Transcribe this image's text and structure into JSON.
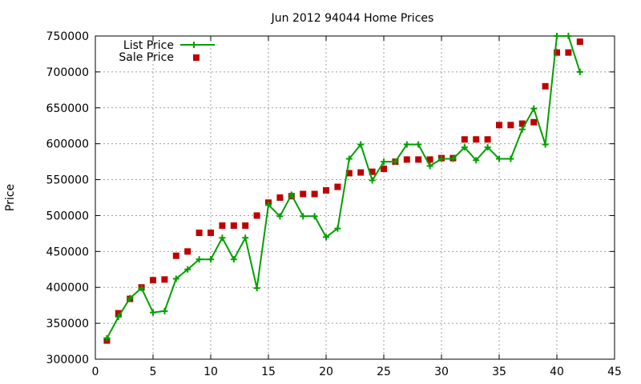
{
  "chart_data": {
    "type": "line",
    "title": "Jun 2012 94044 Home Prices",
    "xlabel": "",
    "ylabel": "Price",
    "xlim": [
      0,
      45
    ],
    "ylim": [
      300000,
      750000
    ],
    "x_ticks": [
      "0",
      "5",
      "10",
      "15",
      "20",
      "25",
      "30",
      "35",
      "40",
      "45"
    ],
    "y_ticks": [
      "300000",
      "350000",
      "400000",
      "450000",
      "500000",
      "550000",
      "600000",
      "650000",
      "700000",
      "750000"
    ],
    "grid": true,
    "legend_position": "top-left",
    "series": [
      {
        "name": "List Price",
        "style": "line-with-plus-markers",
        "color": "#00a000",
        "x": [
          1,
          2,
          3,
          4,
          5,
          6,
          7,
          8,
          9,
          10,
          11,
          12,
          13,
          14,
          15,
          16,
          17,
          18,
          19,
          20,
          21,
          22,
          23,
          24,
          25,
          26,
          27,
          28,
          29,
          30,
          31,
          32,
          33,
          34,
          35,
          36,
          37,
          38,
          39,
          40,
          41,
          42
        ],
        "values": [
          329000,
          359000,
          385000,
          399000,
          365000,
          367000,
          412000,
          425000,
          439000,
          439000,
          469000,
          439000,
          469000,
          399000,
          515000,
          499000,
          529000,
          499000,
          499000,
          470000,
          482000,
          579000,
          599000,
          549000,
          575000,
          575000,
          599000,
          599000,
          569000,
          579000,
          579000,
          595000,
          577000,
          595000,
          579000,
          579000,
          620000,
          649000,
          599000,
          750000,
          750000,
          700000
        ]
      },
      {
        "name": "Sale Price",
        "style": "square-markers",
        "color": "#c00000",
        "x": [
          1,
          2,
          3,
          4,
          5,
          6,
          7,
          8,
          9,
          10,
          11,
          12,
          13,
          14,
          15,
          16,
          17,
          18,
          19,
          20,
          21,
          22,
          23,
          24,
          25,
          26,
          27,
          28,
          29,
          30,
          31,
          32,
          33,
          34,
          35,
          36,
          37,
          38,
          39,
          40,
          41,
          42
        ],
        "values": [
          326000,
          364000,
          384000,
          400000,
          410000,
          411000,
          444000,
          450000,
          476000,
          476000,
          486000,
          486000,
          486000,
          500000,
          518000,
          525000,
          527000,
          530000,
          530000,
          535000,
          540000,
          559000,
          560000,
          561000,
          565000,
          575000,
          578000,
          578000,
          578000,
          580000,
          580000,
          606000,
          606000,
          606000,
          626000,
          626000,
          628000,
          630000,
          680000,
          727000,
          727000,
          742000
        ]
      }
    ]
  }
}
